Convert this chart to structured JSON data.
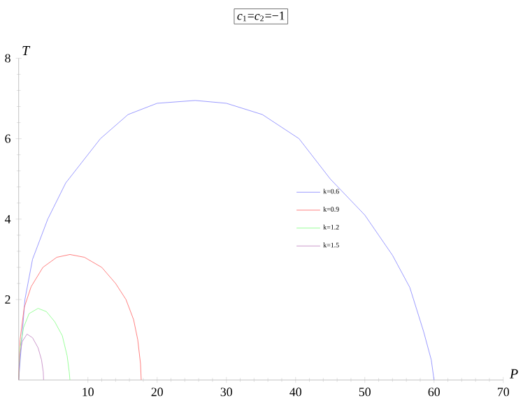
{
  "chart_data": {
    "type": "line",
    "title": "*c*$_{1}$=*c*$_{2}$=−1",
    "xlabel": "P",
    "ylabel": "T",
    "xlim": [
      0,
      70
    ],
    "ylim": [
      0,
      8
    ],
    "xticks": [
      10,
      20,
      30,
      40,
      50,
      60,
      70
    ],
    "yticks": [
      2,
      4,
      6,
      8
    ],
    "grid": false,
    "legend": "right",
    "marker": "none",
    "line_style": "solid",
    "series": [
      {
        "name": "k=0.6",
        "color": "#8080ff",
        "x": [
          0,
          0.9,
          2,
          4.2,
          6.8,
          11.8,
          15.8,
          20,
          25.5,
          30,
          35.2,
          40.5,
          45,
          50,
          54,
          56.5,
          58.5,
          59.6,
          60
        ],
        "values": [
          0,
          2,
          3,
          4,
          4.9,
          6,
          6.6,
          6.88,
          6.95,
          6.88,
          6.6,
          6,
          5.0,
          4.1,
          3.1,
          2.3,
          1.2,
          0.5,
          0
        ]
      },
      {
        "name": "k=0.9",
        "color": "#ff6060",
        "x": [
          0,
          0.2,
          0.8,
          1.8,
          3.5,
          5.5,
          7.4,
          9.5,
          12,
          14,
          15.5,
          16.6,
          17.2,
          17.6,
          17.7
        ],
        "values": [
          0,
          1.0,
          1.8,
          2.32,
          2.8,
          3.05,
          3.12,
          3.05,
          2.8,
          2.4,
          2.0,
          1.5,
          1.0,
          0.4,
          0
        ]
      },
      {
        "name": "k=1.2",
        "color": "#80ff80",
        "x": [
          0,
          0.2,
          0.7,
          1.5,
          2.8,
          4,
          5.2,
          6.3,
          7,
          7.3,
          7.4
        ],
        "values": [
          0,
          0.8,
          1.3,
          1.65,
          1.78,
          1.7,
          1.45,
          1.1,
          0.6,
          0.2,
          0
        ]
      },
      {
        "name": "k=1.5",
        "color": "#c080c0",
        "x": [
          0,
          0.15,
          0.5,
          1.2,
          2,
          2.8,
          3.3,
          3.55,
          3.6
        ],
        "values": [
          0,
          0.6,
          0.95,
          1.14,
          1.05,
          0.8,
          0.5,
          0.2,
          0
        ]
      }
    ]
  }
}
